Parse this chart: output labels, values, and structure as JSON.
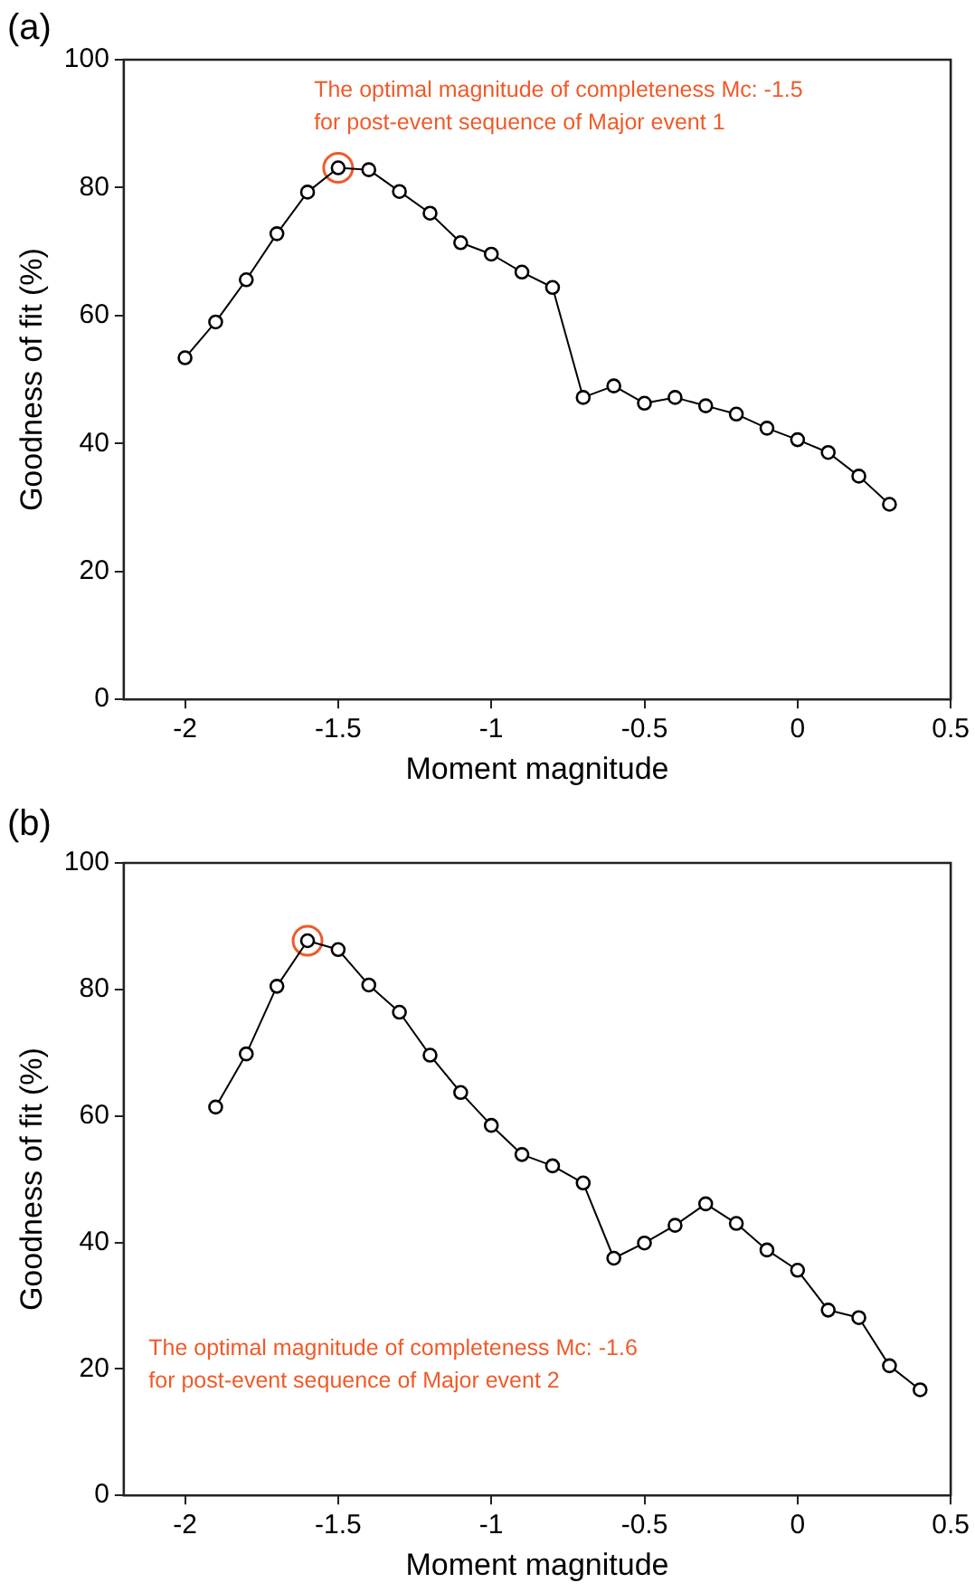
{
  "chart_data": [
    {
      "type": "line",
      "title": "(a)",
      "xlabel": "Moment magnitude",
      "ylabel": "Goodness of fit (%)",
      "xlim": [
        -2.2,
        0.5
      ],
      "xticks": [
        -2,
        -1.5,
        -1,
        -0.5,
        0,
        0.5
      ],
      "ylim": [
        0,
        100
      ],
      "yticks": [
        0,
        20,
        40,
        60,
        80,
        100
      ],
      "grid": false,
      "legend": false,
      "marker": "circle",
      "line_style": "solid",
      "annotations": [
        "The optimal magnitude of completeness Mc: -1.5\nfor post-event sequence of Major event 1"
      ],
      "series": [
        {
          "type": "line",
          "color": "#000000",
          "x": [
            -2,
            -1.9,
            -1.8,
            -1.7,
            -1.6,
            -1.5,
            -1.4,
            -1.3,
            -1.2,
            -1.1,
            -1.0,
            -0.9,
            -0.8,
            -0.7,
            -0.6,
            -0.5,
            -0.4,
            -0.3,
            -0.2,
            -0.1,
            0,
            0.1,
            0.2,
            0.3
          ],
          "values": [
            53.4,
            59.0,
            65.6,
            72.8,
            79.3,
            83.1,
            82.8,
            79.4,
            76.0,
            71.4,
            69.6,
            66.8,
            64.4,
            47.2,
            49.0,
            46.3,
            47.2,
            45.9,
            44.6,
            42.4,
            40.6,
            38.6,
            34.9,
            30.5
          ]
        },
        {
          "type": "scatter",
          "color": "#f05a28",
          "x": [
            -1.5
          ],
          "values": [
            83.1
          ]
        }
      ]
    },
    {
      "type": "line",
      "title": "(b)",
      "xlabel": "Moment magnitude",
      "ylabel": "Goodness of fit (%)",
      "xlim": [
        -2.2,
        0.5
      ],
      "xticks": [
        -2,
        -1.5,
        -1,
        -0.5,
        0,
        0.5
      ],
      "ylim": [
        0,
        100
      ],
      "yticks": [
        0,
        20,
        40,
        60,
        80,
        100
      ],
      "grid": false,
      "legend": false,
      "marker": "circle",
      "line_style": "solid",
      "annotations": [
        "The optimal magnitude of completeness Mc: -1.6\nfor post-event sequence of Major event 2"
      ],
      "series": [
        {
          "type": "line",
          "color": "#000000",
          "x": [
            -1.9,
            -1.8,
            -1.7,
            -1.6,
            -1.5,
            -1.4,
            -1.3,
            -1.2,
            -1.1,
            -1.0,
            -0.9,
            -0.8,
            -0.7,
            -0.6,
            -0.5,
            -0.4,
            -0.3,
            -0.2,
            -0.1,
            0,
            0.1,
            0.2,
            0.3,
            0.4
          ],
          "values": [
            61.4,
            69.8,
            80.5,
            87.7,
            86.3,
            80.7,
            76.4,
            69.6,
            63.7,
            58.5,
            53.9,
            52.1,
            49.4,
            37.5,
            39.9,
            42.7,
            46.1,
            43.0,
            38.8,
            35.6,
            29.3,
            28.1,
            20.5,
            16.7
          ]
        },
        {
          "type": "scatter",
          "color": "#f05a28",
          "x": [
            -1.6
          ],
          "values": [
            87.7
          ]
        }
      ]
    }
  ]
}
